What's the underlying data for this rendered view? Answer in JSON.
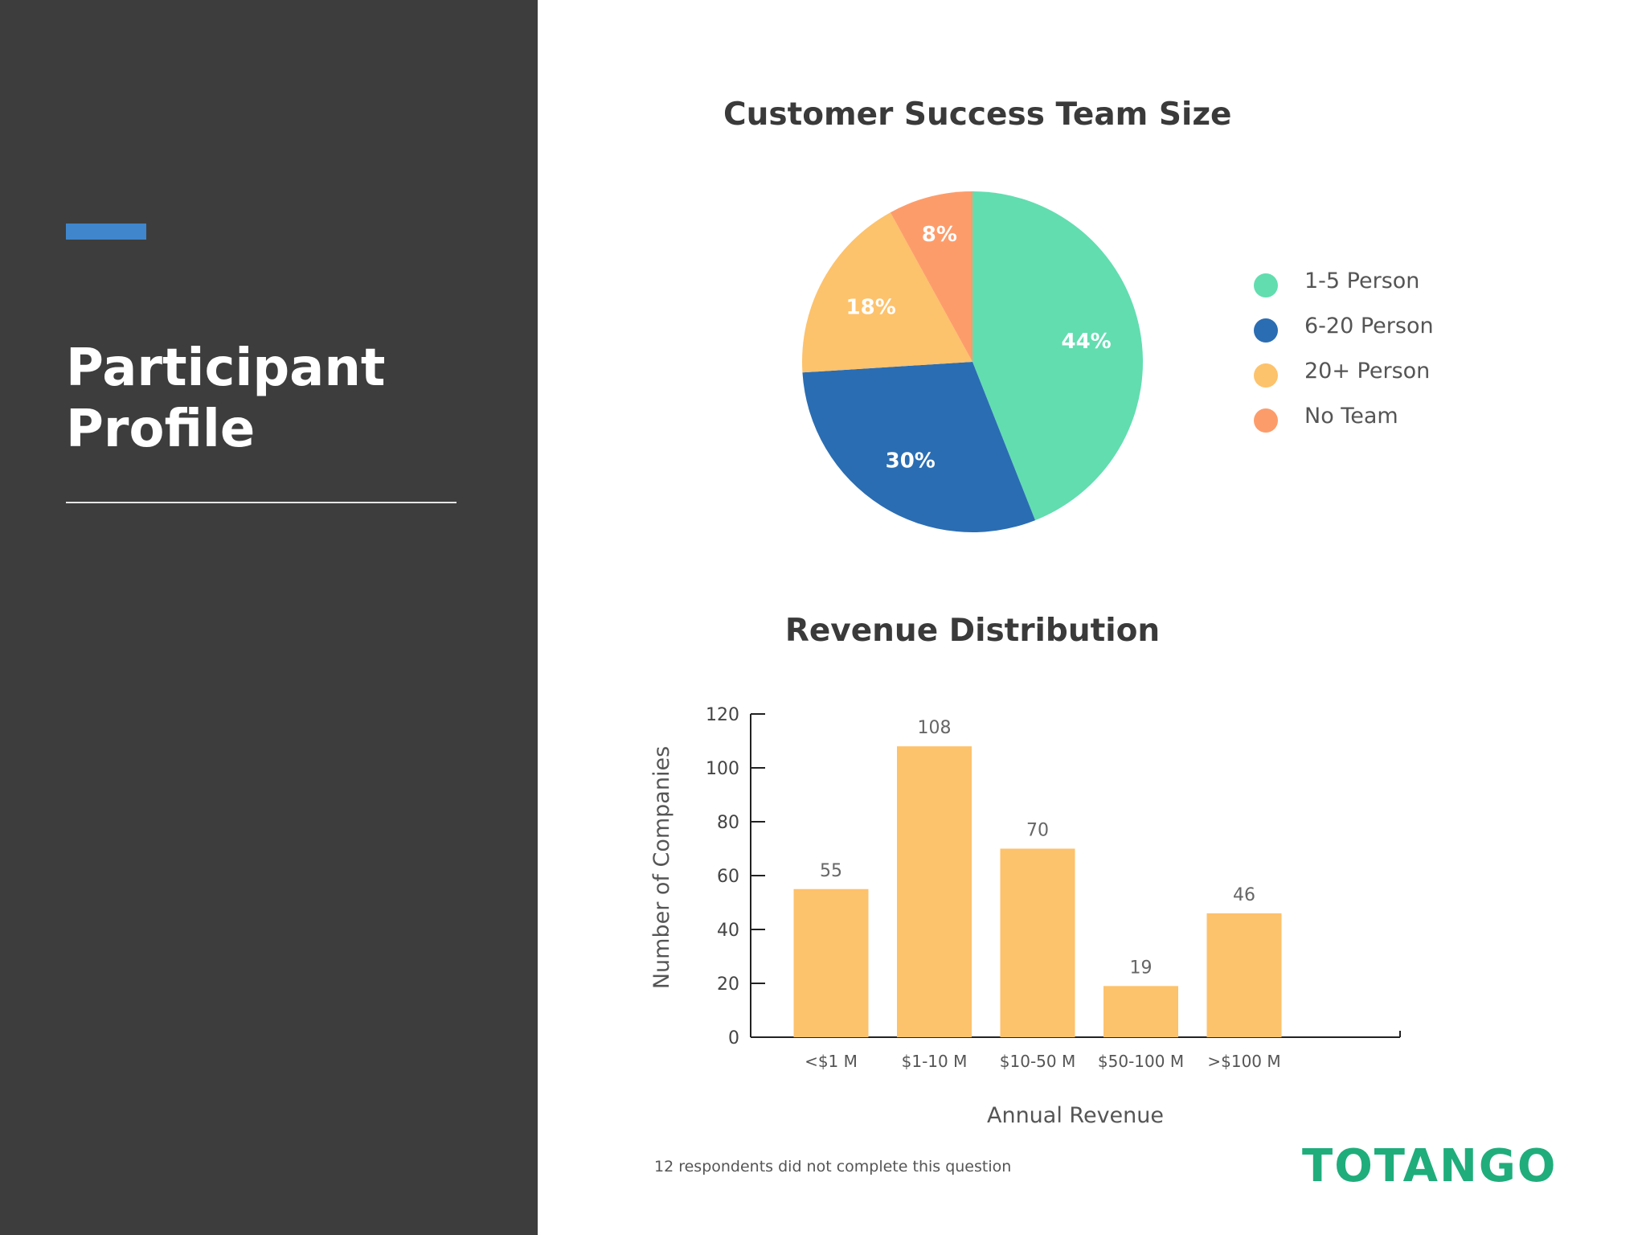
{
  "sidebar": {
    "title_line1": "Participant",
    "title_line2": "Profile",
    "accent_color": "#3f86cc",
    "background_color": "#3d3d3d"
  },
  "legend": {
    "items": [
      {
        "label": "1-5 Person",
        "color": "#62ddb0"
      },
      {
        "label": "6-20 Person",
        "color": "#2a6db3"
      },
      {
        "label": "20+ Person",
        "color": "#fdc26c"
      },
      {
        "label": "No Team",
        "color": "#fd9c6b"
      }
    ]
  },
  "chart_data": [
    {
      "type": "pie",
      "title": "Customer Success Team Size",
      "categories": [
        "1-5 Person",
        "6-20 Person",
        "20+ Person",
        "No Team"
      ],
      "values": [
        44,
        30,
        18,
        8
      ],
      "data_labels": [
        "44%",
        "30%",
        "18%",
        "8%"
      ],
      "colors": [
        "#62ddb0",
        "#2a6db3",
        "#fdc26c",
        "#fd9c6b"
      ],
      "legend_position": "right"
    },
    {
      "type": "bar",
      "title": "Revenue Distribution",
      "categories": [
        "<$1 M",
        "$1-10 M",
        "$10-50 M",
        "$50-100 M",
        ">$100 M"
      ],
      "values": [
        55,
        108,
        70,
        19,
        46
      ],
      "xlabel": "Annual Revenue",
      "ylabel": "Number of Companies",
      "ylim": [
        0,
        120
      ],
      "yticks": [
        0,
        20,
        40,
        60,
        80,
        100,
        120
      ],
      "bar_color": "#fdc26c",
      "grid": false
    }
  ],
  "footnote": "12 respondents did not complete this question",
  "logo": {
    "text": "TOTANGO",
    "color": "#1fad7c"
  }
}
